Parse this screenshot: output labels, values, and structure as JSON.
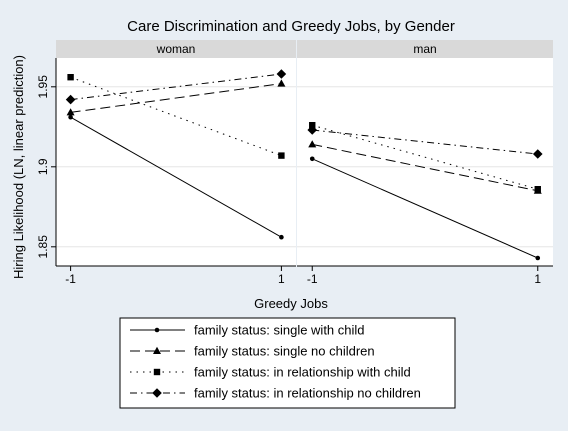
{
  "chart_data": {
    "type": "line",
    "title": "Care Discrimination and Greedy Jobs, by Gender",
    "xlabel": "Greedy Jobs",
    "ylabel": "Hiring Likelihood (LN, linear prediction)",
    "x": [
      -1,
      1
    ],
    "x_ticks": [
      "-1",
      "1"
    ],
    "y_ticks": [
      {
        "value": 1.85,
        "label": "1.85"
      },
      {
        "value": 1.9,
        "label": "1.9"
      },
      {
        "value": 1.95,
        "label": "1.95"
      }
    ],
    "ylim": [
      1.838,
      1.968
    ],
    "grid": true,
    "legend_position": "bottom",
    "panels": [
      {
        "title": "woman",
        "series": [
          {
            "name": "family status: single with child",
            "marker": "circle",
            "dash": "solid",
            "values": [
              1.931,
              1.856
            ]
          },
          {
            "name": "family status: single no children",
            "marker": "triangle",
            "dash": "dash",
            "values": [
              1.934,
              1.952
            ]
          },
          {
            "name": "family status: in relationship with child",
            "marker": "square",
            "dash": "dot",
            "values": [
              1.956,
              1.907
            ]
          },
          {
            "name": "family status: in relationship no children",
            "marker": "diamond",
            "dash": "dashdot",
            "values": [
              1.942,
              1.958
            ]
          }
        ]
      },
      {
        "title": "man",
        "series": [
          {
            "name": "family status: single with child",
            "marker": "circle",
            "dash": "solid",
            "values": [
              1.905,
              1.843
            ]
          },
          {
            "name": "family status: single no children",
            "marker": "triangle",
            "dash": "dash",
            "values": [
              1.914,
              1.885
            ]
          },
          {
            "name": "family status: in relationship with child",
            "marker": "square",
            "dash": "dot",
            "values": [
              1.926,
              1.886
            ]
          },
          {
            "name": "family status: in relationship no children",
            "marker": "diamond",
            "dash": "dashdot",
            "values": [
              1.923,
              1.908
            ]
          }
        ]
      }
    ],
    "legend": [
      {
        "label": "family status: single with child",
        "marker": "circle",
        "dash": "solid"
      },
      {
        "label": "family status: single no children",
        "marker": "triangle",
        "dash": "dash"
      },
      {
        "label": "family status: in relationship with child",
        "marker": "square",
        "dash": "dot"
      },
      {
        "label": "family status: in relationship no children",
        "marker": "diamond",
        "dash": "dashdot"
      }
    ],
    "colors": {
      "background": "#e8eef4",
      "plot_background": "#ffffff",
      "panel_header": "#d9d9d9",
      "line": "#000000",
      "grid": "#e6e6e6"
    }
  }
}
